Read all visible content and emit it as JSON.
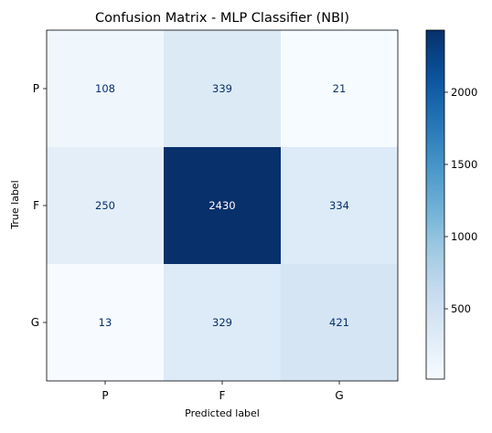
{
  "chart_data": {
    "type": "heatmap",
    "title": "Confusion Matrix - MLP Classifier (NBI)",
    "xlabel": "Predicted label",
    "ylabel": "True label",
    "x_categories": [
      "P",
      "F",
      "G"
    ],
    "y_categories": [
      "P",
      "F",
      "G"
    ],
    "values": [
      [
        108,
        339,
        21
      ],
      [
        250,
        2430,
        334
      ],
      [
        13,
        329,
        421
      ]
    ],
    "colormap": "Blues",
    "color_range": [
      13,
      2430
    ],
    "colorbar_ticks": [
      500,
      1000,
      1500,
      2000
    ],
    "grid": false
  }
}
